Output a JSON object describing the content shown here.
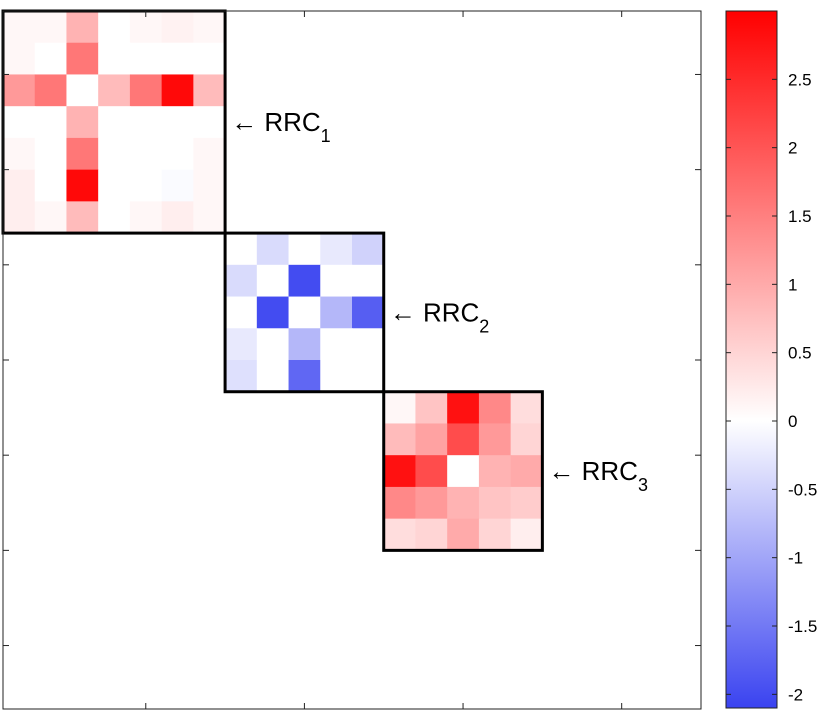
{
  "chart_data": {
    "type": "heatmap",
    "title": "",
    "xlabel": "",
    "ylabel": "",
    "grid": false,
    "n": 22,
    "colormap": {
      "min_color": "#3a43f0",
      "zero_color": "#ffffff",
      "max_color": "#ff0000"
    },
    "colorbar": {
      "min": -2.1,
      "max": 3.0,
      "ticks": [
        -2,
        -1.5,
        -1,
        -0.5,
        0,
        0.5,
        1,
        1.5,
        2,
        2.5
      ],
      "tick_labels": [
        "-2",
        "-1.5",
        "-1",
        "-0.5",
        "0",
        "0.5",
        "1",
        "1.5",
        "2",
        "2.5"
      ]
    },
    "blocks": [
      {
        "name": "RRC",
        "subscript": "1",
        "start": 0,
        "size": 7,
        "values": [
          [
            0.1,
            0.1,
            0.9,
            0.0,
            0.1,
            0.15,
            0.1
          ],
          [
            0.1,
            0.0,
            1.6,
            0.0,
            0.0,
            0.0,
            0.0
          ],
          [
            1.2,
            1.6,
            0.0,
            0.8,
            1.6,
            2.9,
            0.8
          ],
          [
            0.0,
            0.0,
            0.9,
            0.0,
            0.0,
            0.0,
            0.0
          ],
          [
            0.1,
            0.0,
            1.6,
            0.0,
            0.0,
            0.0,
            0.1
          ],
          [
            0.2,
            0.0,
            2.9,
            0.0,
            0.0,
            -0.05,
            0.1
          ],
          [
            0.2,
            0.1,
            0.8,
            0.0,
            0.1,
            0.2,
            0.1
          ]
        ]
      },
      {
        "name": "RRC",
        "subscript": "2",
        "start": 7,
        "size": 5,
        "values": [
          [
            0.0,
            -0.4,
            0.0,
            -0.25,
            -0.5
          ],
          [
            -0.4,
            0.0,
            -2.0,
            0.0,
            0.0
          ],
          [
            0.0,
            -2.0,
            0.0,
            -0.8,
            -1.8
          ],
          [
            -0.25,
            0.0,
            -0.8,
            0.0,
            0.0
          ],
          [
            -0.35,
            0.0,
            -1.7,
            0.0,
            0.0
          ]
        ]
      },
      {
        "name": "RRC",
        "subscript": "3",
        "start": 12,
        "size": 5,
        "values": [
          [
            0.1,
            0.7,
            2.8,
            1.4,
            0.4
          ],
          [
            0.8,
            1.1,
            2.1,
            1.2,
            0.5
          ],
          [
            2.8,
            2.1,
            0.0,
            0.9,
            1.0
          ],
          [
            1.4,
            1.2,
            0.9,
            0.7,
            0.6
          ],
          [
            0.4,
            0.5,
            1.0,
            0.5,
            0.2
          ]
        ]
      }
    ]
  }
}
